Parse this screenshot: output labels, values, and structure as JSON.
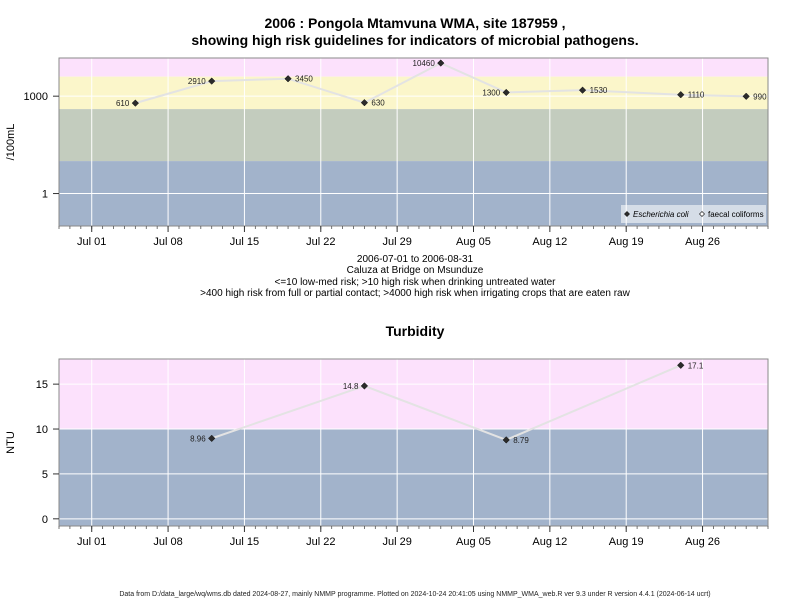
{
  "colors": {
    "band_high": "#FCE1FC",
    "band_yellow": "#FBF6CA",
    "band_green": "#C3CCBE",
    "band_low": "#A2B3CB",
    "line": "#E3E3E3",
    "marker": "#2b2b2b",
    "grid": "#ffffff",
    "panel_border": "#8a8a8a"
  },
  "footer": "Data from D:/data_large/wq/wms.db dated 2024-08-27, mainly NMMP programme. Plotted on 2024-10-24 20:41:05 using NMMP_WMA_web.R ver 9.3 under R version 4.4.1 (2024-06-14 ucrt)",
  "chart_data": [
    {
      "type": "scatter",
      "title_line1": "2006 : Pongola Mtamvuna WMA, site 187959 ,",
      "title_line2": "showing high risk guidelines for indicators of microbial pathogens.",
      "ylabel": "/100mL",
      "yscale": "log10",
      "ylim": [
        0.1,
        15000
      ],
      "yticks": [
        1,
        1000
      ],
      "ytick_labels": [
        "1",
        "1000"
      ],
      "xlim": [
        "2006-06-28",
        "2006-09-01"
      ],
      "xticks": [
        "2006-07-01",
        "2006-07-08",
        "2006-07-15",
        "2006-07-22",
        "2006-07-29",
        "2006-08-05",
        "2006-08-12",
        "2006-08-19",
        "2006-08-26"
      ],
      "xtick_labels": [
        "Jul 01",
        "Jul 08",
        "Jul 15",
        "Jul 22",
        "Jul 29",
        "Aug 05",
        "Aug 12",
        "Aug 19",
        "Aug 26"
      ],
      "bands": [
        {
          "from": 4000,
          "to": 15000,
          "color_key": "band_high"
        },
        {
          "from": 400,
          "to": 4000,
          "color_key": "band_yellow"
        },
        {
          "from": 10,
          "to": 400,
          "color_key": "band_green"
        },
        {
          "from": 0.1,
          "to": 10,
          "color_key": "band_low"
        }
      ],
      "grid": true,
      "legend_position": "bottom-right",
      "legend": [
        {
          "label": "Escherichia coli",
          "italic": true,
          "marker": "filled-diamond"
        },
        {
          "label": "faecal coliforms",
          "italic": false,
          "marker": "open-diamond"
        }
      ],
      "series": [
        {
          "name": "Escherichia coli",
          "points": [
            {
              "x": "2006-07-05",
              "y": 610,
              "label": "610"
            },
            {
              "x": "2006-07-12",
              "y": 2910,
              "label": "2910"
            },
            {
              "x": "2006-07-19",
              "y": 3450,
              "label": "3450"
            },
            {
              "x": "2006-07-26",
              "y": 630,
              "label": "630"
            },
            {
              "x": "2006-08-02",
              "y": 10460,
              "label": "10460"
            },
            {
              "x": "2006-08-08",
              "y": 1300,
              "label": "1300"
            },
            {
              "x": "2006-08-15",
              "y": 1530,
              "label": "1530"
            },
            {
              "x": "2006-08-24",
              "y": 1110,
              "label": "1110"
            },
            {
              "x": "2006-08-30",
              "y": 990,
              "label": "990"
            }
          ]
        }
      ],
      "caption_lines": [
        "2006-07-01 to 2006-08-31",
        "Caluza at Bridge on Msunduze",
        "<=10 low-med risk; >10 high risk when drinking untreated water",
        ">400 high risk from full or partial contact; >4000 high risk when irrigating crops that are eaten raw"
      ]
    },
    {
      "type": "scatter",
      "title": "Turbidity",
      "ylabel": "NTU",
      "ylim": [
        -0.8,
        17.8
      ],
      "yticks": [
        0,
        5,
        10,
        15
      ],
      "ytick_labels": [
        "0",
        "5",
        "10",
        "15"
      ],
      "xlim": [
        "2006-06-28",
        "2006-09-01"
      ],
      "xticks": [
        "2006-07-01",
        "2006-07-08",
        "2006-07-15",
        "2006-07-22",
        "2006-07-29",
        "2006-08-05",
        "2006-08-12",
        "2006-08-19",
        "2006-08-26"
      ],
      "xtick_labels": [
        "Jul 01",
        "Jul 08",
        "Jul 15",
        "Jul 22",
        "Jul 29",
        "Aug 05",
        "Aug 12",
        "Aug 19",
        "Aug 26"
      ],
      "bands": [
        {
          "from": 10,
          "to": 17.8,
          "color_key": "band_high"
        },
        {
          "from": -0.8,
          "to": 10,
          "color_key": "band_low"
        }
      ],
      "grid": true,
      "series": [
        {
          "name": "",
          "points": [
            {
              "x": "2006-07-12",
              "y": 8.96,
              "label": "8.96"
            },
            {
              "x": "2006-07-26",
              "y": 14.8,
              "label": "14.8"
            },
            {
              "x": "2006-08-08",
              "y": 8.79,
              "label": "8.79"
            },
            {
              "x": "2006-08-24",
              "y": 17.1,
              "label": "17.1"
            }
          ]
        }
      ]
    }
  ]
}
